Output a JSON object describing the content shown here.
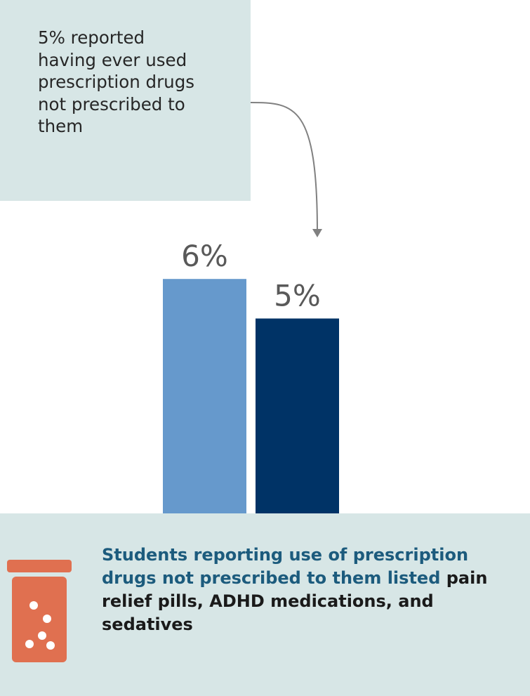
{
  "callout": {
    "lines": [
      "5% reported",
      "having ever used",
      "prescription drugs",
      "not prescribed to",
      "them"
    ]
  },
  "chart_data": {
    "type": "bar",
    "categories": [
      "",
      ""
    ],
    "values": [
      6,
      5
    ],
    "data_labels": [
      "6%",
      "5%"
    ],
    "colors": [
      "#6699cc",
      "#003366"
    ],
    "ylim": [
      0,
      25
    ],
    "grid": false,
    "legend": "none"
  },
  "footer": {
    "highlight_text": "Students reporting use of prescription drugs not prescribed to them listed",
    "bold_text": " pain relief pills, ADHD medications, and sedatives"
  },
  "icon": {
    "name": "pill-bottle-icon",
    "color": "#e07050"
  }
}
